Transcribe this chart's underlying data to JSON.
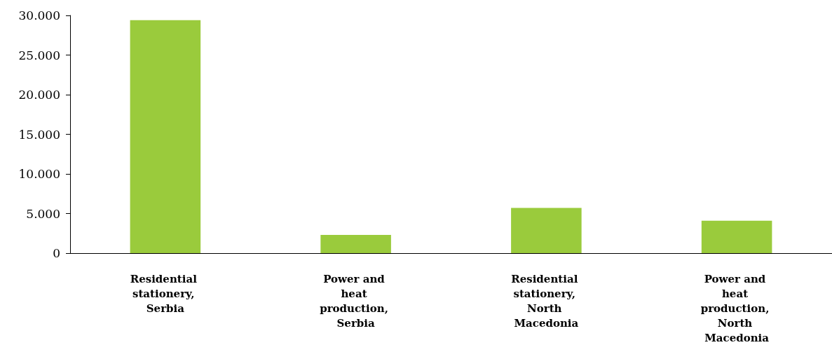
{
  "chart_data": {
    "type": "bar",
    "categories": [
      "Residential stationery, Serbia",
      "Power and heat production, Serbia",
      "Residential stationery, North Macedonia",
      "Power and heat production, North Macedonia"
    ],
    "values": [
      29400,
      2300,
      5700,
      4100
    ],
    "color": "#9acb3c",
    "ylim": [
      0,
      30000
    ],
    "yticks": [
      {
        "value": 0,
        "label": "0"
      },
      {
        "value": 5000,
        "label": "5.000"
      },
      {
        "value": 10000,
        "label": "10.000"
      },
      {
        "value": 15000,
        "label": "15.000"
      },
      {
        "value": 20000,
        "label": "20.000"
      },
      {
        "value": 25000,
        "label": "25.000"
      },
      {
        "value": 30000,
        "label": "30.000"
      }
    ],
    "grid": false
  }
}
